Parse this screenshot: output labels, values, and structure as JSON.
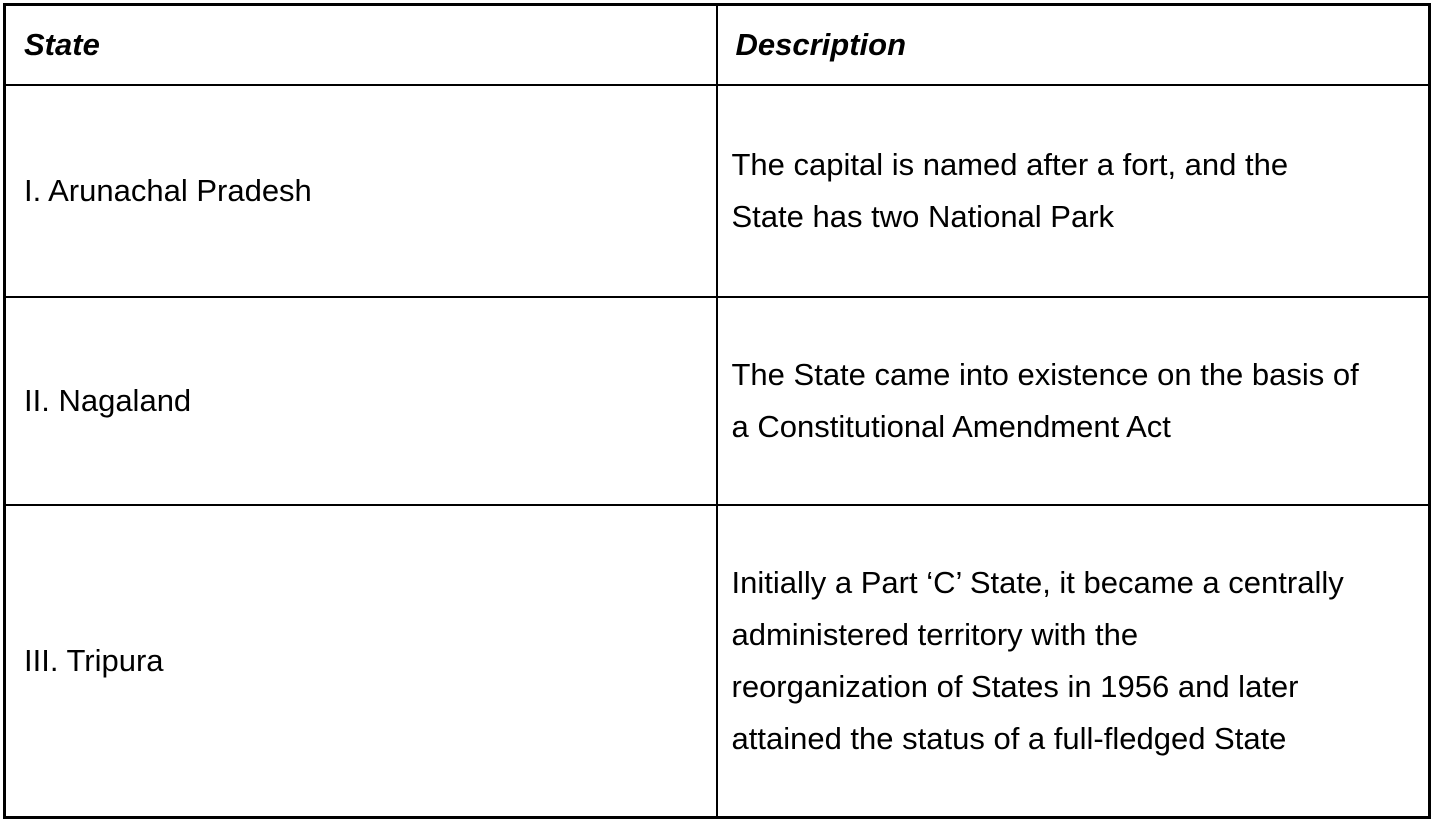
{
  "page": {
    "background_color": "#ffffff",
    "text_color": "#000000",
    "border_color": "#000000"
  },
  "table": {
    "header": {
      "state": "State",
      "description": "Description"
    },
    "rows": [
      {
        "state": "I. Arunachal Pradesh",
        "description": "The capital is named after a fort, and the\nState has two National Park"
      },
      {
        "state": "II. Nagaland",
        "description": "The State came into existence on the basis of\na Constitutional Amendment Act"
      },
      {
        "state": "III. Tripura",
        "description": "Initially a Part ‘C’ State, it became a centrally\nadministered territory with the\nreorganization of States in 1956 and later\nattained the status of a full-fledged State"
      }
    ]
  }
}
